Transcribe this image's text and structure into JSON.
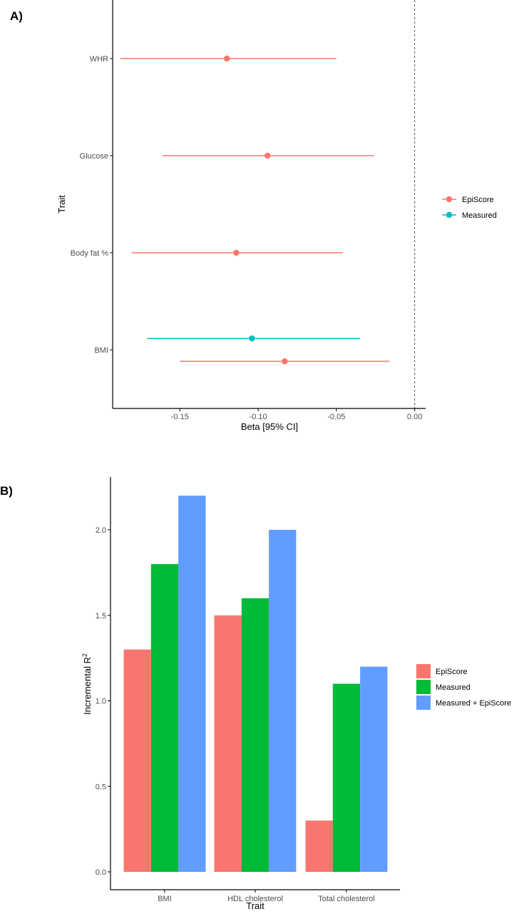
{
  "colors": {
    "episcore": "#F8766D",
    "measured_a": "#00BFC4",
    "measured_b": "#00BA38",
    "combined": "#619CFF",
    "axis": "#000000",
    "tick_text": "#4d4d4d",
    "reference_line": "#555555"
  },
  "chart_data": [
    {
      "panel_label": "A)",
      "type": "scatter",
      "subtype": "forest plot (point estimate with 95% CI)",
      "xlabel": "Beta [95% CI]",
      "ylabel": "Trait",
      "xlim": [
        -0.193,
        0.007
      ],
      "xticks": [
        "-0.15",
        "-0.10",
        "-0.05",
        "0.00"
      ],
      "xtick_values": [
        -0.15,
        -0.1,
        -0.05,
        0.0
      ],
      "categories": [
        "WHR",
        "Glucose",
        "Body fat %",
        "BMI"
      ],
      "reference_line_x": 0.0,
      "grid": false,
      "legend_position": "right",
      "series": [
        {
          "name": "EpiScore",
          "color_key": "episcore",
          "points": [
            {
              "trait": "WHR",
              "beta": -0.12,
              "ci_low": -0.188,
              "ci_high": -0.05
            },
            {
              "trait": "Glucose",
              "beta": -0.094,
              "ci_low": -0.161,
              "ci_high": -0.026
            },
            {
              "trait": "Body fat %",
              "beta": -0.114,
              "ci_low": -0.181,
              "ci_high": -0.046
            },
            {
              "trait": "BMI",
              "beta": -0.083,
              "ci_low": -0.15,
              "ci_high": -0.016
            }
          ]
        },
        {
          "name": "Measured",
          "color_key": "measured_a",
          "points": [
            {
              "trait": "BMI",
              "beta": -0.104,
              "ci_low": -0.171,
              "ci_high": -0.035
            }
          ]
        }
      ]
    },
    {
      "panel_label": "B)",
      "type": "bar",
      "subtype": "grouped",
      "xlabel": "Trait",
      "ylabel_main": "Incremental R",
      "ylabel_superscript": "2",
      "ylim": [
        0,
        2.3
      ],
      "yticks": [
        "0.0",
        "0.5",
        "1.0",
        "1.5",
        "2.0"
      ],
      "ytick_values": [
        0,
        0.5,
        1.0,
        1.5,
        2.0
      ],
      "categories": [
        "BMI",
        "HDL cholesterol",
        "Total cholesterol"
      ],
      "grid": false,
      "legend_position": "right",
      "series": [
        {
          "name": "EpiScore",
          "color_key": "episcore",
          "values": [
            1.3,
            1.5,
            0.3
          ]
        },
        {
          "name": "Measured",
          "color_key": "measured_b",
          "values": [
            1.8,
            1.6,
            1.1
          ]
        },
        {
          "name": "Measured + EpiScore",
          "color_key": "combined",
          "values": [
            2.2,
            2.0,
            1.2
          ]
        }
      ]
    }
  ]
}
